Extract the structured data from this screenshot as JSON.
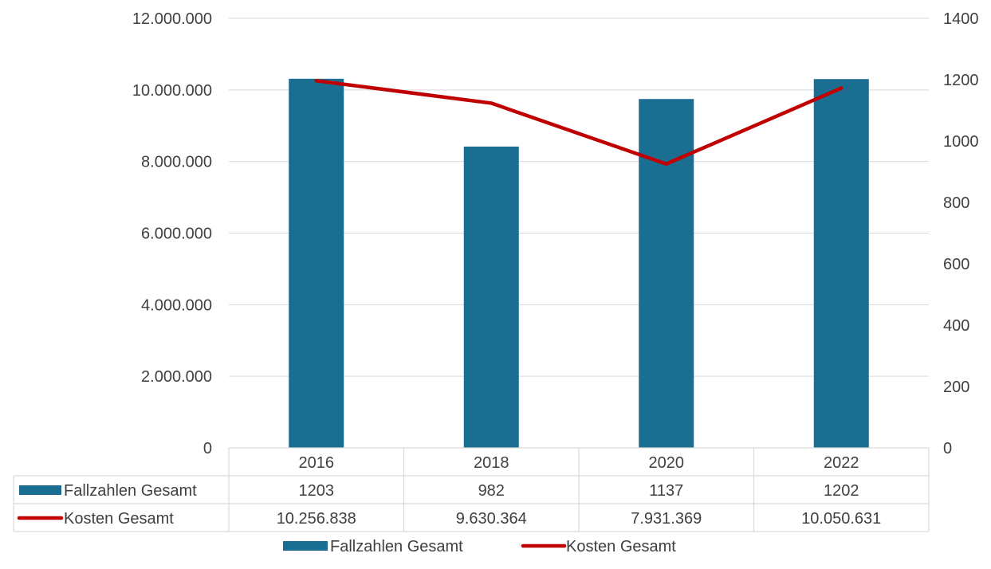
{
  "chart_data": {
    "type": "bar",
    "categories": [
      "2016",
      "2018",
      "2020",
      "2022"
    ],
    "series": [
      {
        "name": "Fallzahlen Gesamt",
        "kind": "bar",
        "axis": "secondary",
        "values": [
          1203,
          982,
          1137,
          1202
        ],
        "value_labels": [
          "1203",
          "982",
          "1137",
          "1202"
        ],
        "color": "#1a6e91"
      },
      {
        "name": "Kosten Gesamt",
        "kind": "line",
        "axis": "primary",
        "values": [
          10256838,
          9630364,
          7931369,
          10050631
        ],
        "value_labels": [
          "10.256.838",
          "9.630.364",
          "7.931.369",
          "10.050.631"
        ],
        "color": "#c00000"
      }
    ],
    "primary_axis": {
      "ylim": [
        0,
        12000000
      ],
      "ticks": [
        "0",
        "2.000.000",
        "4.000.000",
        "6.000.000",
        "8.000.000",
        "10.000.000",
        "12.000.000"
      ]
    },
    "secondary_axis": {
      "ylim": [
        0,
        1400
      ],
      "ticks": [
        "0",
        "200",
        "400",
        "600",
        "800",
        "1000",
        "1200",
        "1400"
      ]
    },
    "grid": true,
    "data_table": true,
    "legend": "bottom"
  }
}
